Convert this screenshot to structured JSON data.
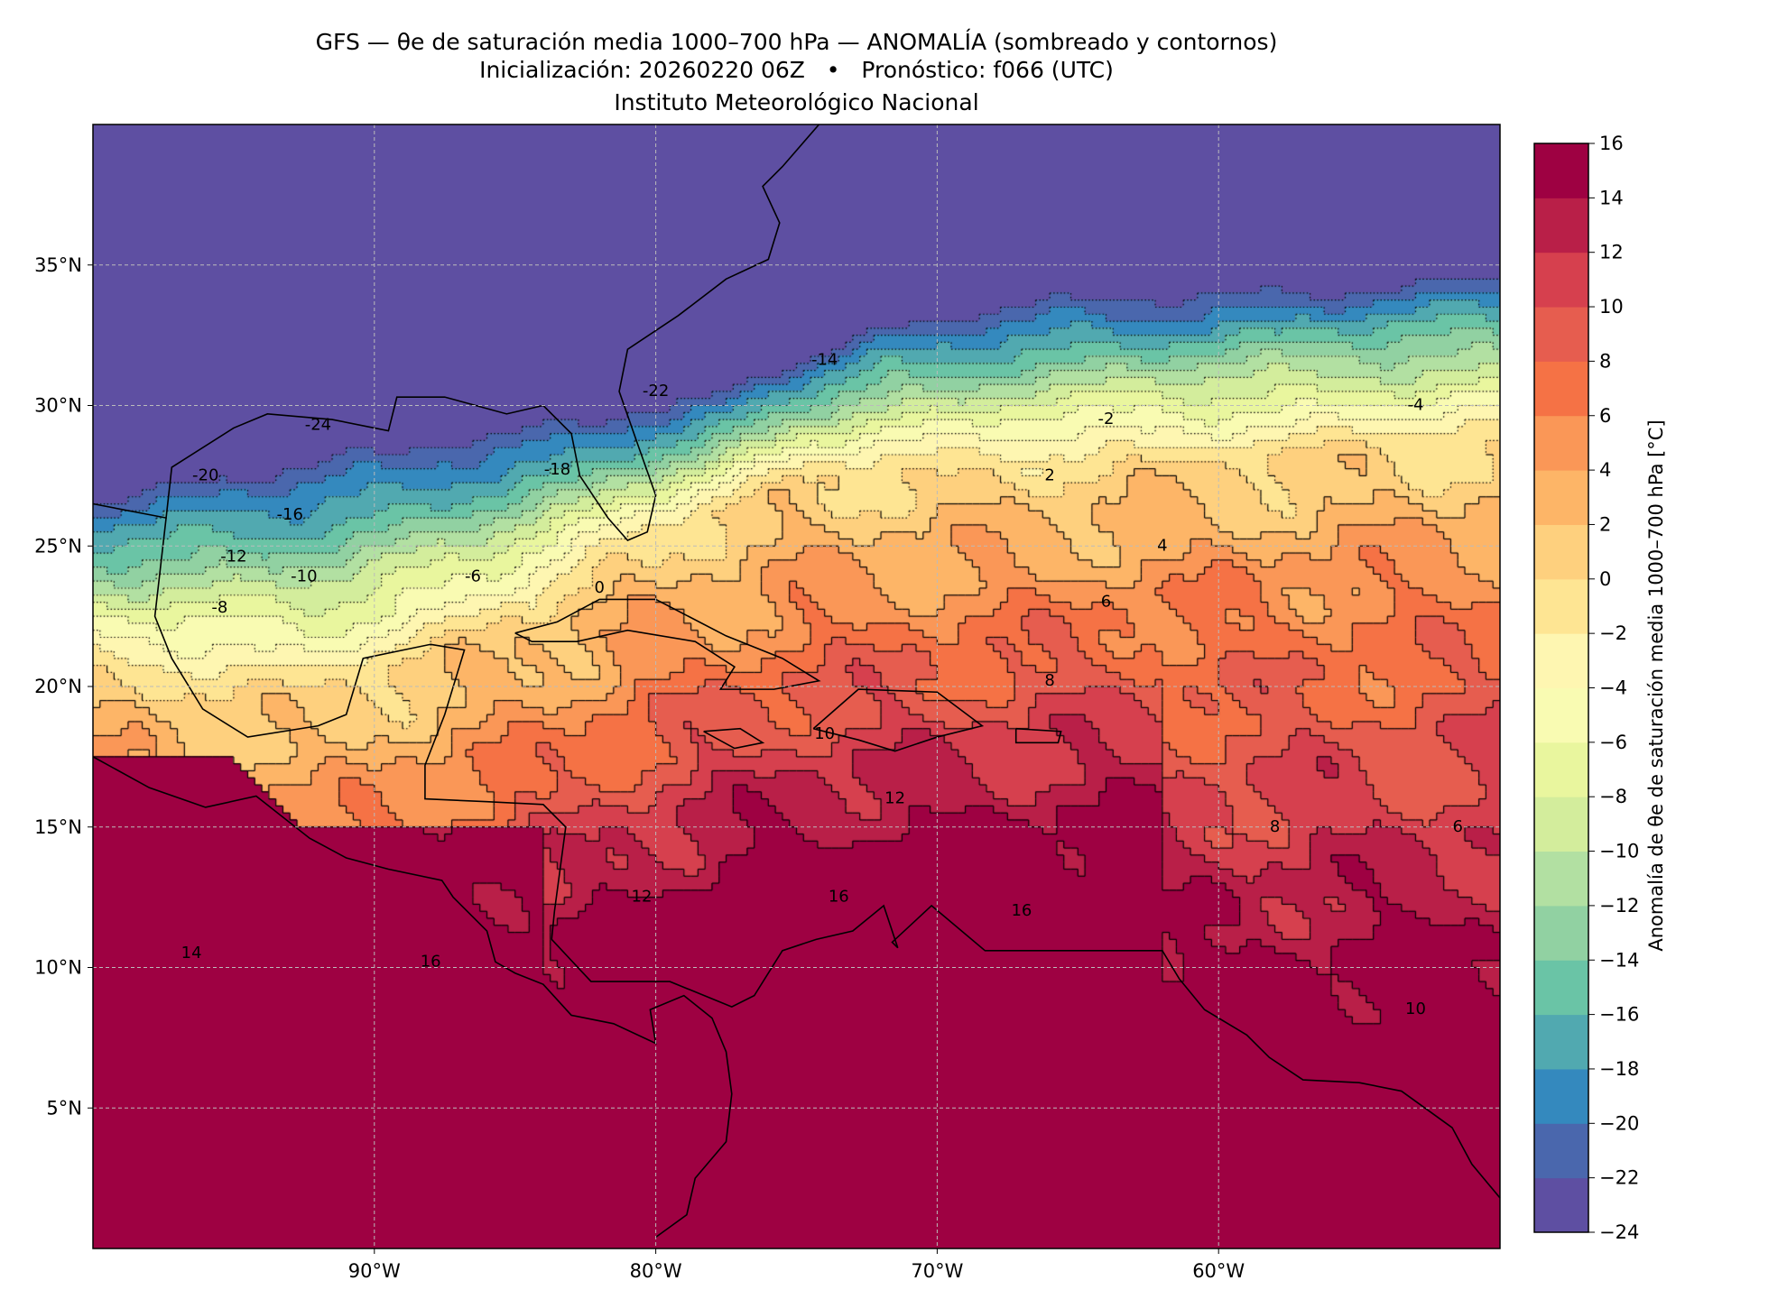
{
  "title": {
    "line1": "GFS — θe de saturación media 1000–700 hPa — ANOMALÍA (sombreado y contornos)",
    "line2": "Inicialización: 20260220 06Z   •   Pronóstico: f066 (UTC)",
    "line3": "Instituto Meteorológico Nacional"
  },
  "chart_data": {
    "type": "heatmap",
    "xlim": [
      -100,
      -50
    ],
    "ylim": [
      0,
      40
    ],
    "xticks": [
      {
        "value": -90,
        "label": "90°W"
      },
      {
        "value": -80,
        "label": "80°W"
      },
      {
        "value": -70,
        "label": "70°W"
      },
      {
        "value": -60,
        "label": "60°W"
      }
    ],
    "yticks": [
      {
        "value": 5,
        "label": "5°N"
      },
      {
        "value": 10,
        "label": "10°N"
      },
      {
        "value": 15,
        "label": "15°N"
      },
      {
        "value": 20,
        "label": "20°N"
      },
      {
        "value": 25,
        "label": "25°N"
      },
      {
        "value": 30,
        "label": "30°N"
      },
      {
        "value": 35,
        "label": "35°N"
      }
    ],
    "grid": true,
    "colorbar": {
      "label": "Anomalía de θe de saturación media 1000–700 hPa [°C]",
      "levels": [
        -24,
        -22,
        -20,
        -18,
        -16,
        -14,
        -12,
        -10,
        -8,
        -6,
        -4,
        -2,
        0,
        2,
        4,
        6,
        8,
        10,
        12,
        14,
        16
      ],
      "tick_labels": [
        "−24",
        "−22",
        "−20",
        "−18",
        "−16",
        "−14",
        "−12",
        "−10",
        "−8",
        "−6",
        "−4",
        "−2",
        "0",
        "2",
        "4",
        "6",
        "8",
        "10",
        "12",
        "14",
        "16"
      ],
      "colors": [
        "#5e4fa2",
        "#4a67ad",
        "#3489be",
        "#51a9b0",
        "#6ac4a6",
        "#91d1a2",
        "#b2e0a2",
        "#d3ed9c",
        "#e9f69e",
        "#f9fbb2",
        "#fef6b1",
        "#fee593",
        "#fed07e",
        "#fdb567",
        "#fa9757",
        "#f57245",
        "#e65d4f",
        "#d6404e",
        "#b91f48",
        "#9e0142"
      ]
    },
    "contour_labels": [
      {
        "lon": -92,
        "lat": 29.3,
        "text": "-24"
      },
      {
        "lon": -83.5,
        "lat": 27.7,
        "text": "-18"
      },
      {
        "lon": -80,
        "lat": 30.5,
        "text": "-22"
      },
      {
        "lon": -74,
        "lat": 31.6,
        "text": "-14"
      },
      {
        "lon": -96,
        "lat": 27.5,
        "text": "-20"
      },
      {
        "lon": -93,
        "lat": 26.1,
        "text": "-16"
      },
      {
        "lon": -95,
        "lat": 24.6,
        "text": "-12"
      },
      {
        "lon": -92.5,
        "lat": 23.9,
        "text": "-10"
      },
      {
        "lon": -95.5,
        "lat": 22.8,
        "text": "-8"
      },
      {
        "lon": -86.5,
        "lat": 23.9,
        "text": "-6"
      },
      {
        "lon": -82,
        "lat": 23.5,
        "text": "0"
      },
      {
        "lon": -64,
        "lat": 29.5,
        "text": "-2"
      },
      {
        "lon": -53,
        "lat": 30,
        "text": "-4"
      },
      {
        "lon": -66,
        "lat": 27.5,
        "text": "2"
      },
      {
        "lon": -62,
        "lat": 25,
        "text": "4"
      },
      {
        "lon": -64,
        "lat": 23,
        "text": "6"
      },
      {
        "lon": -66,
        "lat": 20.2,
        "text": "8"
      },
      {
        "lon": -74,
        "lat": 18.3,
        "text": "10"
      },
      {
        "lon": -71.5,
        "lat": 16,
        "text": "12"
      },
      {
        "lon": -80.5,
        "lat": 12.5,
        "text": "12"
      },
      {
        "lon": -73.5,
        "lat": 12.5,
        "text": "16"
      },
      {
        "lon": -67,
        "lat": 12,
        "text": "16"
      },
      {
        "lon": -88,
        "lat": 10.2,
        "text": "16"
      },
      {
        "lon": -96.5,
        "lat": 10.5,
        "text": "14"
      },
      {
        "lon": -53,
        "lat": 8.5,
        "text": "10"
      },
      {
        "lon": -58,
        "lat": 15,
        "text": "8"
      },
      {
        "lon": -51.5,
        "lat": 15,
        "text": "6"
      }
    ]
  }
}
